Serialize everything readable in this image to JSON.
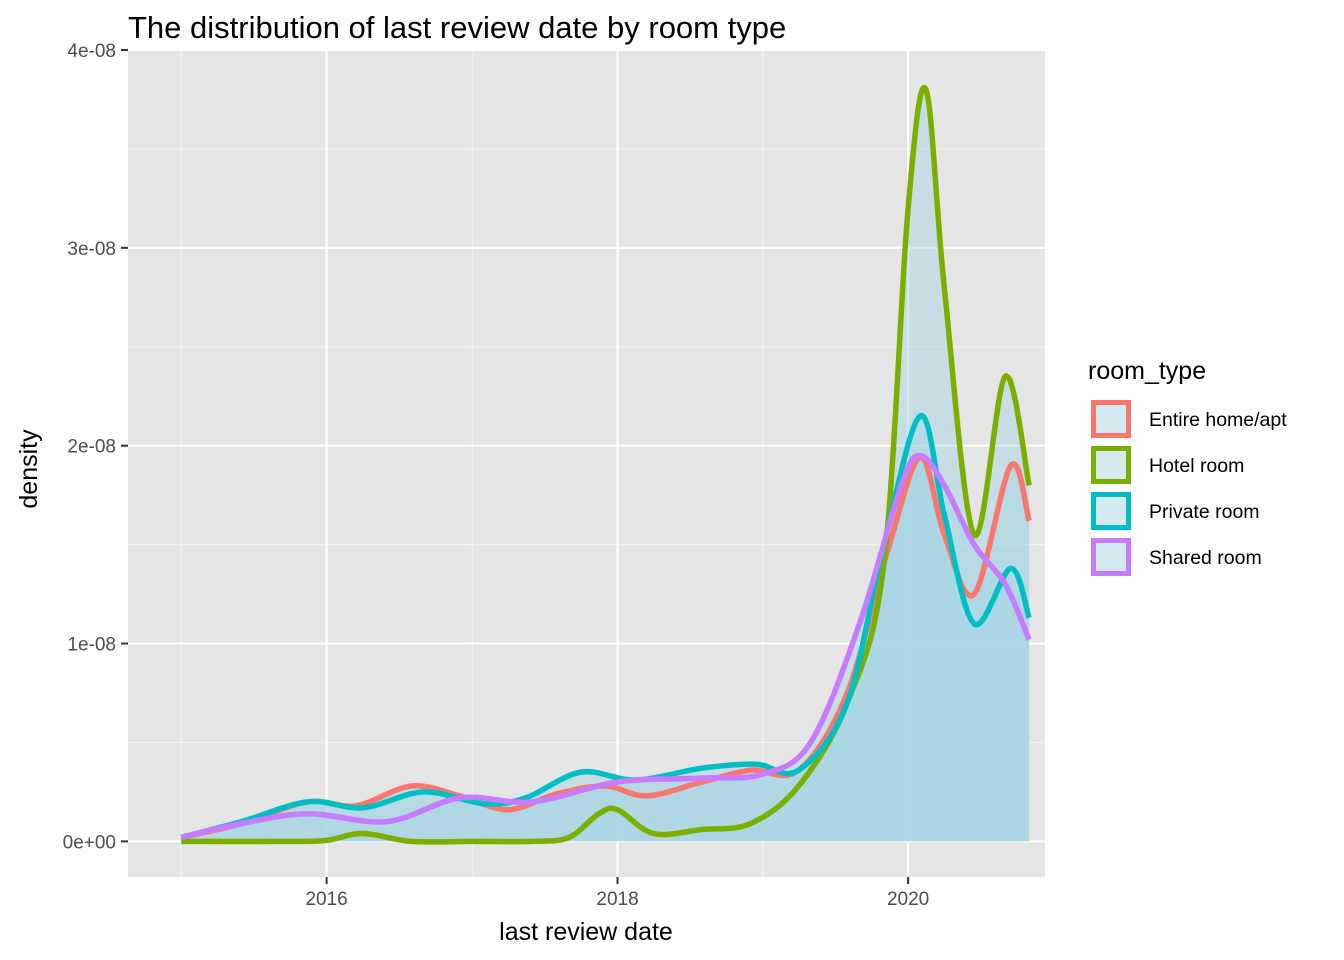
{
  "chart_data": {
    "type": "area",
    "title": "The distribution of last review date by room type",
    "xlabel": "last review date",
    "ylabel": "density",
    "xlim": [
      "2014-08-20",
      "2020-12-10"
    ],
    "ylim": [
      -1.8e-09,
      4e-08
    ],
    "x_ticks": [
      {
        "value": "2016-01-01",
        "label": "2016"
      },
      {
        "value": "2018-01-01",
        "label": "2018"
      },
      {
        "value": "2020-01-01",
        "label": "2020"
      }
    ],
    "y_ticks": [
      {
        "value": 0,
        "label": "0e+00"
      },
      {
        "value": 1e-08,
        "label": "1e-08"
      },
      {
        "value": 2e-08,
        "label": "2e-08"
      },
      {
        "value": 3e-08,
        "label": "3e-08"
      },
      {
        "value": 4e-08,
        "label": "4e-08"
      }
    ],
    "grid": true,
    "legend": {
      "title": "room_type",
      "position": "right"
    },
    "fill_color": "#a7d5e3",
    "series": [
      {
        "name": "Entire home/apt",
        "color": "#F8766D",
        "points": [
          [
            "2015-01-01",
            2e-10
          ],
          [
            "2015-06-01",
            9e-10
          ],
          [
            "2015-11-15",
            2e-09
          ],
          [
            "2016-03-15",
            1.8e-09
          ],
          [
            "2016-08-01",
            2.8e-09
          ],
          [
            "2016-12-01",
            2.3e-09
          ],
          [
            "2017-04-01",
            1.6e-09
          ],
          [
            "2017-08-01",
            2.4e-09
          ],
          [
            "2017-12-01",
            2.8e-09
          ],
          [
            "2018-03-15",
            2.3e-09
          ],
          [
            "2018-08-01",
            3e-09
          ],
          [
            "2018-12-01",
            3.6e-09
          ],
          [
            "2019-04-01",
            3.6e-09
          ],
          [
            "2019-08-01",
            7.5e-09
          ],
          [
            "2019-11-15",
            1.5e-08
          ],
          [
            "2020-02-01",
            1.94e-08
          ],
          [
            "2020-04-01",
            1.55e-08
          ],
          [
            "2020-06-15",
            1.25e-08
          ],
          [
            "2020-09-15",
            1.9e-08
          ],
          [
            "2020-10-31",
            1.62e-08
          ]
        ]
      },
      {
        "name": "Hotel room",
        "color": "#7CAE00",
        "points": [
          [
            "2015-01-01",
            0.0
          ],
          [
            "2015-10-01",
            0.0
          ],
          [
            "2016-01-01",
            5e-11
          ],
          [
            "2016-04-01",
            4e-10
          ],
          [
            "2016-08-01",
            0.0
          ],
          [
            "2017-01-01",
            0.0
          ],
          [
            "2017-06-01",
            0.0
          ],
          [
            "2017-09-01",
            2e-10
          ],
          [
            "2017-11-15",
            1.4e-09
          ],
          [
            "2018-01-01",
            1.6e-09
          ],
          [
            "2018-04-01",
            4e-10
          ],
          [
            "2018-08-01",
            6e-10
          ],
          [
            "2018-12-01",
            9e-10
          ],
          [
            "2019-04-01",
            2.8e-09
          ],
          [
            "2019-08-01",
            7e-09
          ],
          [
            "2019-11-01",
            1.4e-08
          ],
          [
            "2020-01-01",
            3.2e-08
          ],
          [
            "2020-02-15",
            3.8e-08
          ],
          [
            "2020-04-01",
            2.8e-08
          ],
          [
            "2020-06-15",
            1.55e-08
          ],
          [
            "2020-09-01",
            2.35e-08
          ],
          [
            "2020-10-31",
            1.8e-08
          ]
        ]
      },
      {
        "name": "Private room",
        "color": "#00BFC4",
        "points": [
          [
            "2015-01-01",
            2e-10
          ],
          [
            "2015-06-01",
            1e-09
          ],
          [
            "2015-11-15",
            2e-09
          ],
          [
            "2016-04-01",
            1.7e-09
          ],
          [
            "2016-09-01",
            2.5e-09
          ],
          [
            "2017-02-01",
            1.9e-09
          ],
          [
            "2017-05-15",
            2.2e-09
          ],
          [
            "2017-10-01",
            3.5e-09
          ],
          [
            "2018-02-15",
            3.1e-09
          ],
          [
            "2018-08-01",
            3.7e-09
          ],
          [
            "2018-12-15",
            3.9e-09
          ],
          [
            "2019-04-01",
            3.6e-09
          ],
          [
            "2019-08-01",
            7e-09
          ],
          [
            "2019-11-01",
            1.5e-08
          ],
          [
            "2020-02-01",
            2.15e-08
          ],
          [
            "2020-04-01",
            1.65e-08
          ],
          [
            "2020-06-15",
            1.1e-08
          ],
          [
            "2020-09-15",
            1.38e-08
          ],
          [
            "2020-10-31",
            1.13e-08
          ]
        ]
      },
      {
        "name": "Shared room",
        "color": "#C77CFF",
        "points": [
          [
            "2015-01-01",
            2e-10
          ],
          [
            "2015-06-01",
            9e-10
          ],
          [
            "2015-11-15",
            1.4e-09
          ],
          [
            "2016-06-01",
            1e-09
          ],
          [
            "2016-12-01",
            2.2e-09
          ],
          [
            "2017-06-01",
            2e-09
          ],
          [
            "2018-01-01",
            3e-09
          ],
          [
            "2018-08-01",
            3.2e-09
          ],
          [
            "2019-01-01",
            3.4e-09
          ],
          [
            "2019-05-01",
            5e-09
          ],
          [
            "2019-09-01",
            1.1e-08
          ],
          [
            "2019-12-15",
            1.8e-08
          ],
          [
            "2020-02-01",
            1.95e-08
          ],
          [
            "2020-04-01",
            1.8e-08
          ],
          [
            "2020-06-15",
            1.5e-08
          ],
          [
            "2020-09-01",
            1.3e-08
          ],
          [
            "2020-10-31",
            1.02e-08
          ]
        ]
      }
    ]
  }
}
